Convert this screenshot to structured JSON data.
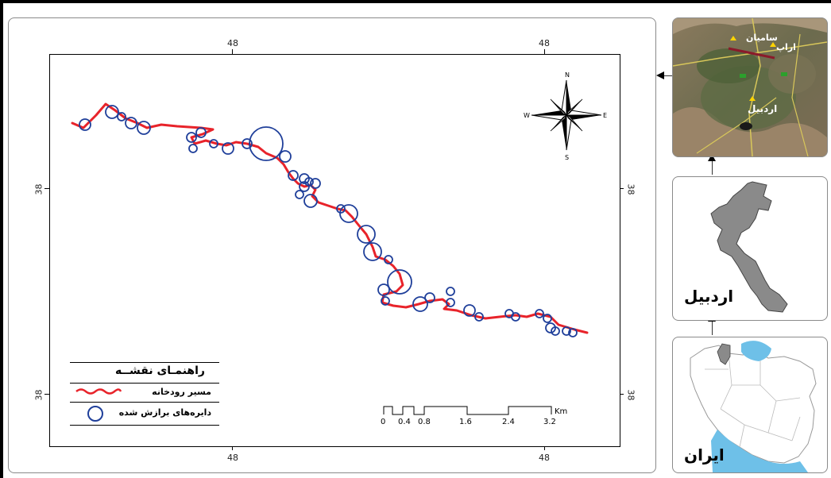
{
  "main_map": {
    "top_coords": [
      "48",
      "48"
    ],
    "bottom_coords": [
      "48",
      "48"
    ],
    "left_coords": [
      "38",
      "38"
    ],
    "right_coords": [
      "38",
      "38"
    ],
    "river_color": "#e8232a",
    "circle_color": "#1f3f9a"
  },
  "north_arrow": {
    "n": "N",
    "s": "S",
    "e": "E",
    "w": "W"
  },
  "legend": {
    "title": "راهنمـای نقشــه",
    "river_label": "مسیر رودخانه",
    "circles_label": "دایره‌های برازش شده"
  },
  "scale_bar": {
    "unit": "Km",
    "labels": [
      "0",
      "0.4",
      "0.8",
      "1.6",
      "2.4",
      "3.2"
    ]
  },
  "insets": {
    "satellite": {
      "labels": [
        "سامیان",
        "اراپ",
        "اردبیل"
      ]
    },
    "province": {
      "title": "اردبیل",
      "fill": "#8a8a8a"
    },
    "country": {
      "title": "ایران",
      "highlight": "#8a8a8a",
      "water": "#6ec0e8"
    }
  }
}
